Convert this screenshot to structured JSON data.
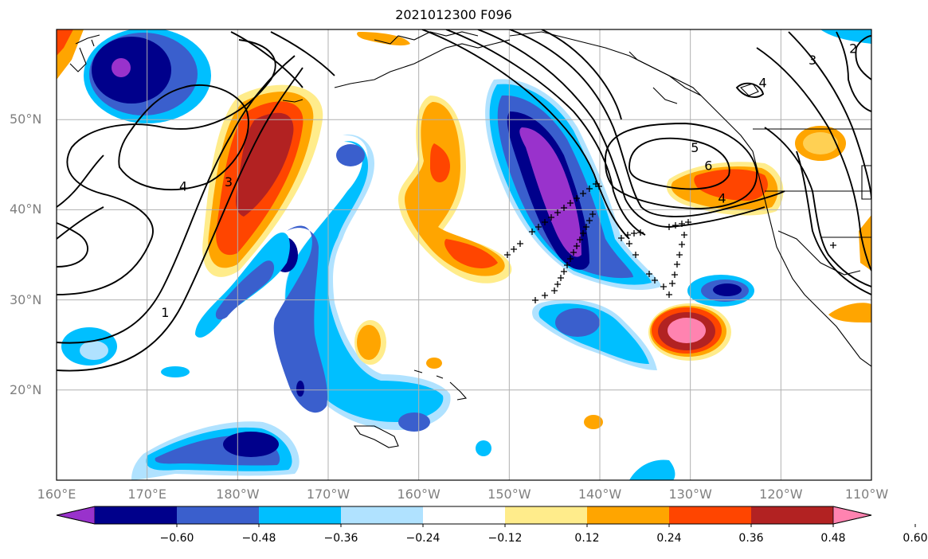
{
  "title": "2021012300 F096",
  "map": {
    "lon_range": [
      160,
      250
    ],
    "lat_range": [
      10,
      60
    ],
    "lat_ticks": [
      {
        "lat": 50,
        "label": "50°N"
      },
      {
        "lat": 40,
        "label": "40°N"
      },
      {
        "lat": 30,
        "label": "30°N"
      },
      {
        "lat": 20,
        "label": "20°N"
      }
    ],
    "lon_ticks": [
      {
        "lon": 160,
        "label": "160°E"
      },
      {
        "lon": 170,
        "label": "170°E"
      },
      {
        "lon": 180,
        "label": "180°W"
      },
      {
        "lon": 190,
        "label": "170°W"
      },
      {
        "lon": 200,
        "label": "160°W"
      },
      {
        "lon": 210,
        "label": "150°W"
      },
      {
        "lon": 220,
        "label": "140°W"
      },
      {
        "lon": 230,
        "label": "130°W"
      },
      {
        "lon": 240,
        "label": "120°W"
      },
      {
        "lon": 250,
        "label": "110°W"
      }
    ],
    "contour_labels": [
      {
        "text": "1",
        "lon": 172,
        "lat": 28.5
      },
      {
        "text": "3",
        "lon": 179,
        "lat": 43
      },
      {
        "text": "4",
        "lon": 174,
        "lat": 42.5
      },
      {
        "text": "5",
        "lon": 230.5,
        "lat": 46.8
      },
      {
        "text": "6",
        "lon": 232,
        "lat": 44.8
      },
      {
        "text": "4",
        "lon": 233.5,
        "lat": 41.2
      },
      {
        "text": "4",
        "lon": 238,
        "lat": 54
      },
      {
        "text": "3",
        "lon": 243.5,
        "lat": 56.5
      },
      {
        "text": "2",
        "lon": 248,
        "lat": 57.8
      }
    ]
  },
  "colorbar": {
    "colors": [
      "#9932cc",
      "#00008b",
      "#3a5fcd",
      "#00bfff",
      "#b0e2ff",
      "#ffffff",
      "#ffec8b",
      "#ffa500",
      "#ff4500",
      "#b22222",
      "#ff83b0"
    ],
    "tick_labels": [
      "−0.60",
      "−0.48",
      "−0.36",
      "−0.24",
      "−0.12",
      "0.12",
      "0.24",
      "0.36",
      "0.48",
      "0.60"
    ]
  }
}
